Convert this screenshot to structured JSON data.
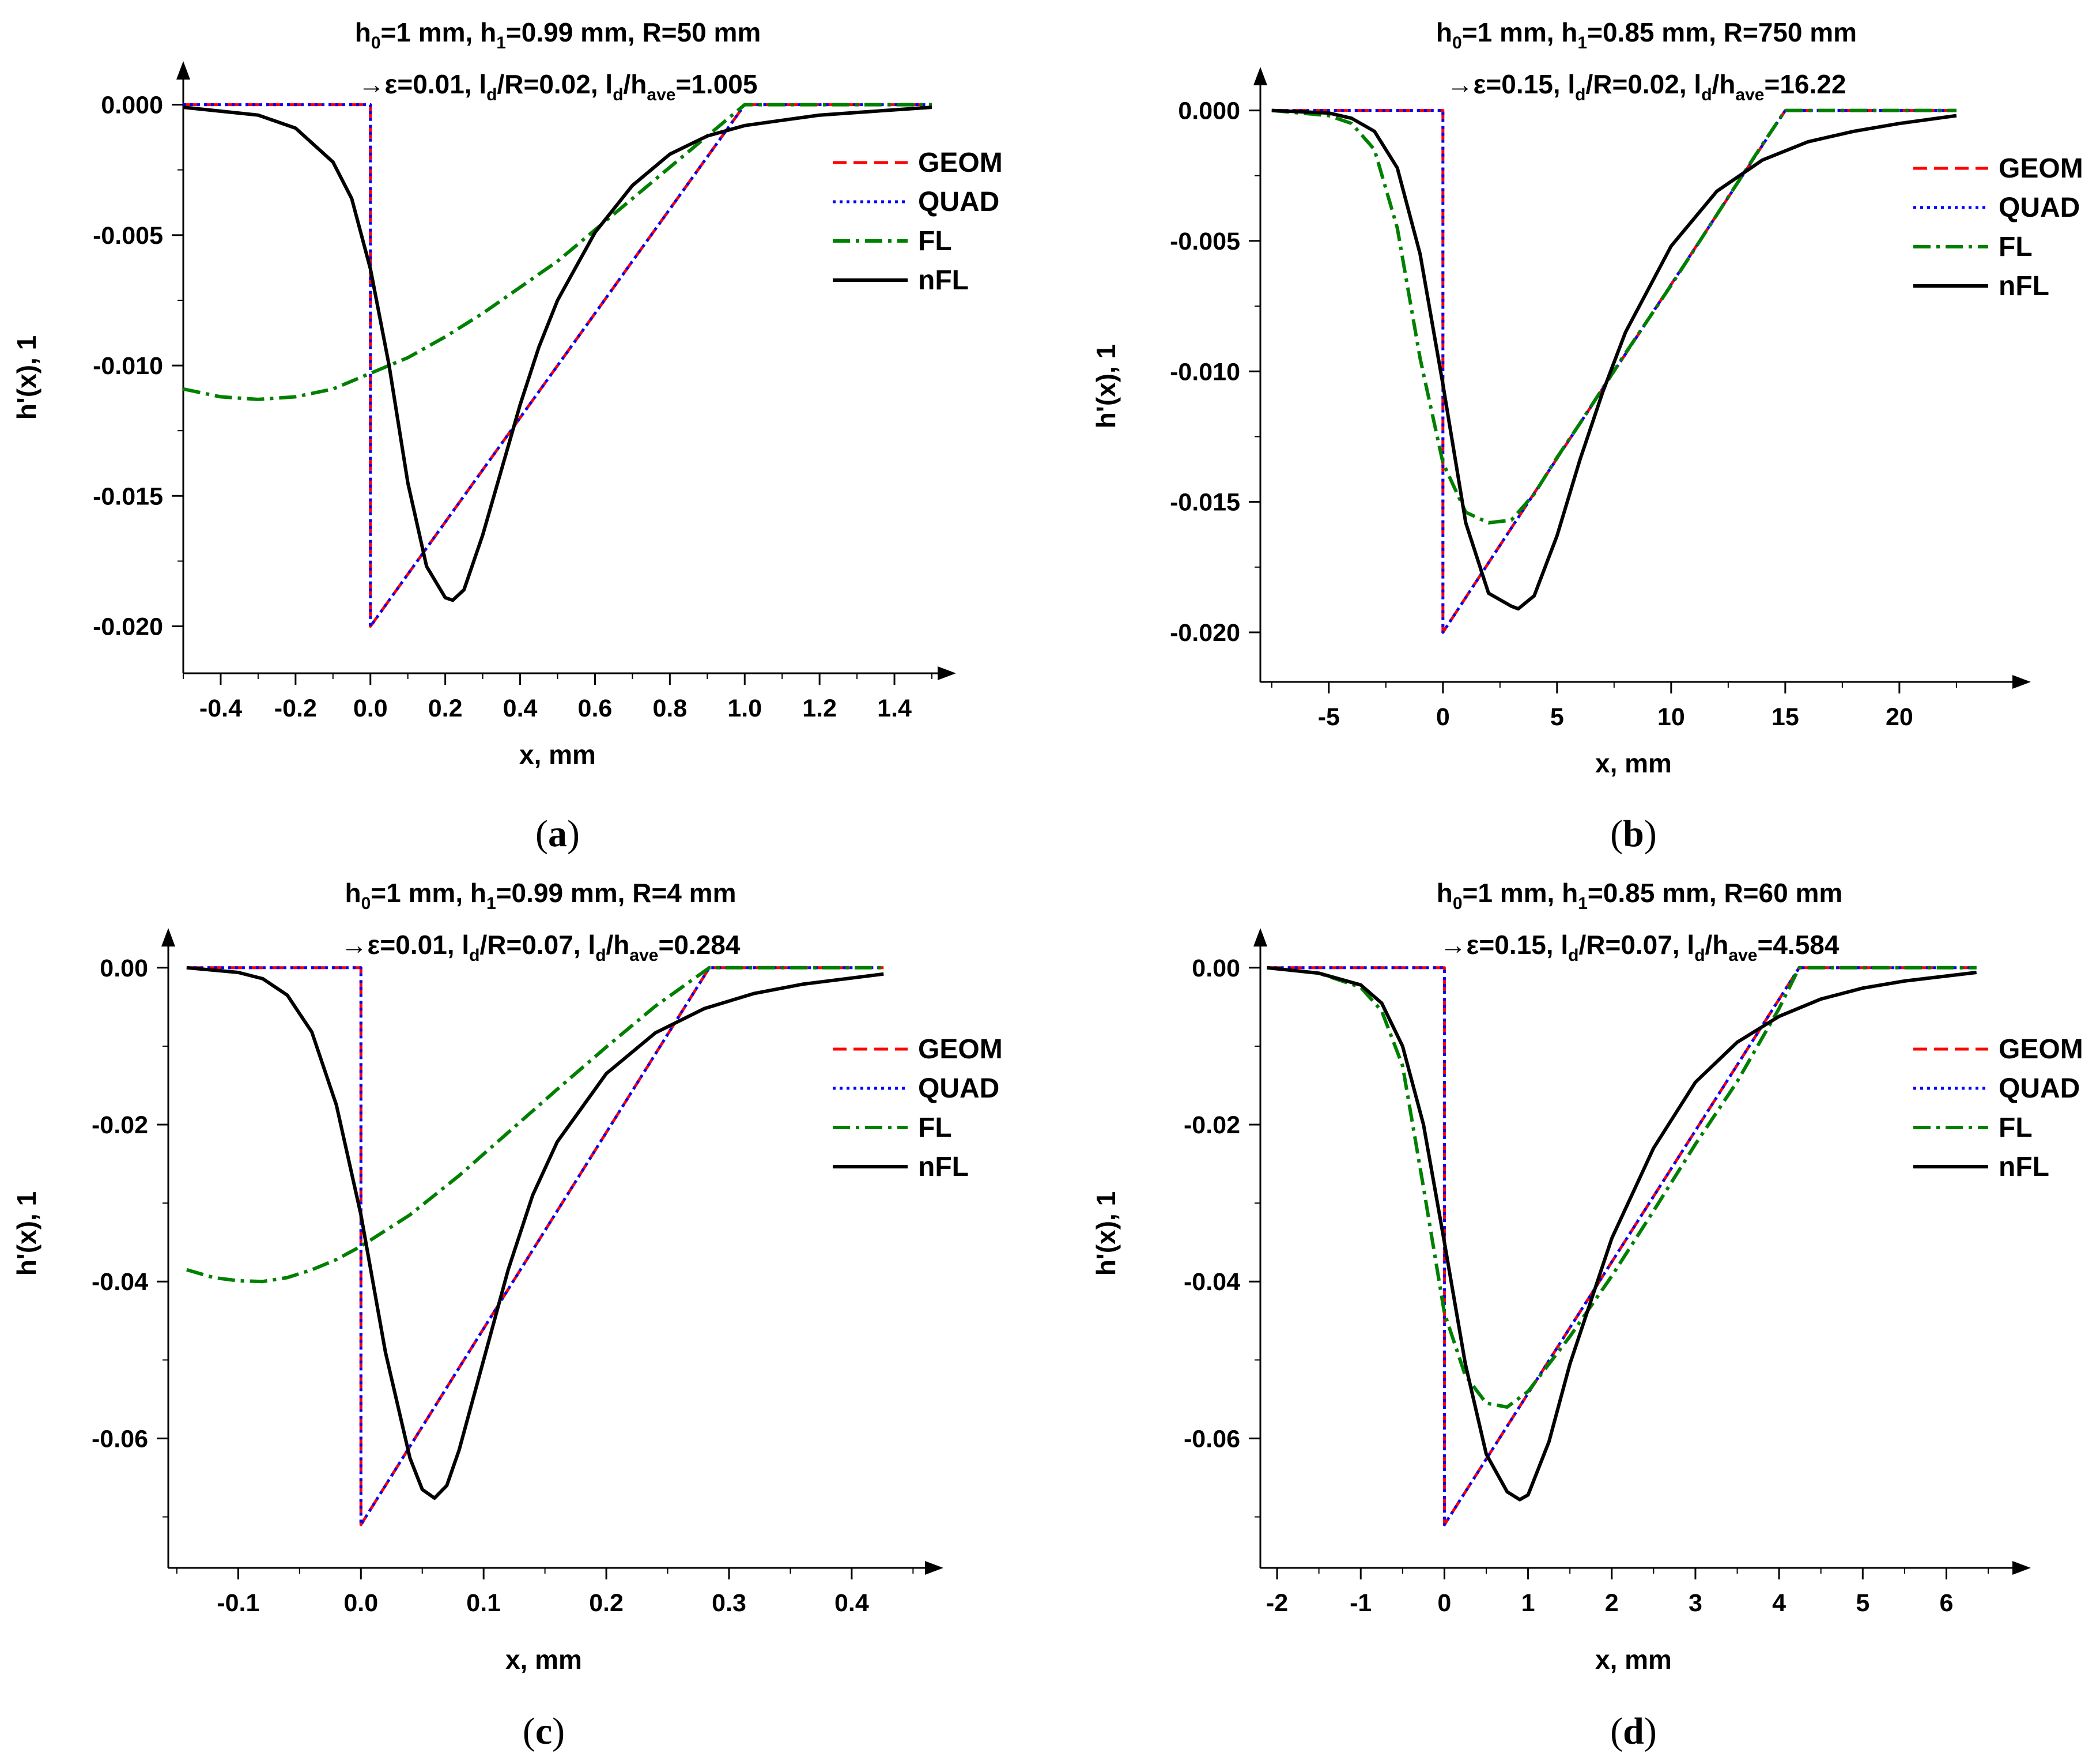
{
  "chart_data": [
    {
      "type": "line",
      "caption_letter": "a",
      "title_line1": [
        "h",
        "0",
        "=1 mm, h",
        "1",
        "=0.99 mm, R=50 mm"
      ],
      "title_line2": [
        "→ε=0.01, l",
        "d",
        "/R=0.02, l",
        "d",
        "/h",
        "ave",
        "=1.005"
      ],
      "xlabel": "x, mm",
      "ylabel": "h'(x), 1",
      "xlim": [
        -0.5,
        1.5
      ],
      "ylim": [
        -0.0218,
        0.0003
      ],
      "xticks": [
        -0.4,
        -0.2,
        0.0,
        0.2,
        0.4,
        0.6,
        0.8,
        1.0,
        1.2,
        1.4
      ],
      "xtick_labels": [
        "-0.4",
        "-0.2",
        "0.0",
        "0.2",
        "0.4",
        "0.6",
        "0.8",
        "1.0",
        "1.2",
        "1.4"
      ],
      "yticks": [
        0.0,
        -0.005,
        -0.01,
        -0.015,
        -0.02
      ],
      "ytick_labels": [
        "0.000",
        "-0.005",
        "-0.010",
        "-0.015",
        "-0.020"
      ],
      "series": [
        {
          "name": "GEOM",
          "color": "#ff0000",
          "style": "dash",
          "x": [
            -0.5,
            0.0,
            0.0,
            1.0,
            1.5
          ],
          "y": [
            0,
            0,
            -0.02,
            0,
            0
          ]
        },
        {
          "name": "QUAD",
          "color": "#0000ff",
          "style": "dot",
          "x": [
            -0.5,
            0.0,
            0.0,
            1.0,
            1.5
          ],
          "y": [
            0,
            0,
            -0.02,
            0,
            0
          ]
        },
        {
          "name": "FL",
          "color": "#008000",
          "style": "dashdot",
          "x": [
            -0.5,
            -0.4,
            -0.3,
            -0.2,
            -0.1,
            0.0,
            0.1,
            0.2,
            0.3,
            0.4,
            0.5,
            0.6,
            0.7,
            0.8,
            0.9,
            1.0,
            1.2,
            1.5
          ],
          "y": [
            -0.0109,
            -0.0112,
            -0.0113,
            -0.0112,
            -0.0109,
            -0.0103,
            -0.0097,
            -0.0089,
            -0.008,
            -0.007,
            -0.006,
            -0.0048,
            -0.0036,
            -0.0024,
            -0.0012,
            0,
            0,
            0
          ]
        },
        {
          "name": "nFL",
          "color": "#000000",
          "style": "solid",
          "x": [
            -0.5,
            -0.3,
            -0.2,
            -0.1,
            -0.05,
            0.0,
            0.05,
            0.1,
            0.15,
            0.2,
            0.22,
            0.25,
            0.3,
            0.35,
            0.4,
            0.45,
            0.5,
            0.6,
            0.7,
            0.8,
            0.9,
            1.0,
            1.1,
            1.2,
            1.3,
            1.5
          ],
          "y": [
            -0.0001,
            -0.0004,
            -0.0009,
            -0.0022,
            -0.0036,
            -0.0063,
            -0.01,
            -0.0145,
            -0.0177,
            -0.0189,
            -0.019,
            -0.0186,
            -0.0165,
            -0.014,
            -0.0115,
            -0.0093,
            -0.0075,
            -0.0049,
            -0.0031,
            -0.0019,
            -0.0012,
            -0.0008,
            -0.0006,
            -0.0004,
            -0.0003,
            -0.0001
          ]
        }
      ]
    },
    {
      "type": "line",
      "caption_letter": "b",
      "title_line1": [
        "h",
        "0",
        "=1 mm, h",
        "1",
        "=0.85 mm, R=750 mm"
      ],
      "title_line2": [
        "→ε=0.15, l",
        "d",
        "/R=0.02, l",
        "d",
        "/h",
        "ave",
        "=16.22"
      ],
      "xlabel": "x, mm",
      "ylabel": "h'(x), 1",
      "xlim": [
        -8,
        24.7
      ],
      "ylim": [
        -0.0219,
        0.0003
      ],
      "xticks": [
        -5,
        0,
        5,
        10,
        15,
        20
      ],
      "xtick_labels": [
        "-5",
        "0",
        "5",
        "10",
        "15",
        "20"
      ],
      "yticks": [
        0.0,
        -0.005,
        -0.01,
        -0.015,
        -0.02
      ],
      "ytick_labels": [
        "0.000",
        "-0.005",
        "-0.010",
        "-0.015",
        "-0.020"
      ],
      "series": [
        {
          "name": "GEOM",
          "color": "#ff0000",
          "style": "dash",
          "x": [
            -7.5,
            0,
            0,
            15,
            22.5
          ],
          "y": [
            0,
            0,
            -0.02,
            0,
            0
          ]
        },
        {
          "name": "QUAD",
          "color": "#0000ff",
          "style": "dot",
          "x": [
            -7.5,
            0,
            0,
            15,
            22.5
          ],
          "y": [
            0,
            0,
            -0.02,
            0,
            0
          ]
        },
        {
          "name": "FL",
          "color": "#008000",
          "style": "dashdot",
          "x": [
            -7.5,
            -5,
            -4,
            -3,
            -2,
            -1,
            0,
            1,
            2,
            3,
            4,
            5,
            6,
            8,
            10,
            12,
            14,
            15,
            22.5
          ],
          "y": [
            0,
            -0.0002,
            -0.0005,
            -0.0015,
            -0.0045,
            -0.0095,
            -0.0135,
            -0.0154,
            -0.0158,
            -0.0157,
            -0.0147,
            -0.0133,
            -0.012,
            -0.0093,
            -0.0067,
            -0.004,
            -0.0013,
            0,
            0
          ]
        },
        {
          "name": "nFL",
          "color": "#000000",
          "style": "solid",
          "x": [
            -7.5,
            -5,
            -4,
            -3,
            -2,
            -1,
            0,
            1,
            2,
            3,
            3.3,
            4,
            5,
            6,
            7,
            8,
            10,
            12,
            14,
            16,
            18,
            20,
            22.5
          ],
          "y": [
            0,
            -0.0001,
            -0.0003,
            -0.0008,
            -0.0022,
            -0.0055,
            -0.0105,
            -0.0158,
            -0.0185,
            -0.019,
            -0.0191,
            -0.0186,
            -0.0163,
            -0.0134,
            -0.0108,
            -0.0085,
            -0.0052,
            -0.0031,
            -0.0019,
            -0.0012,
            -0.0008,
            -0.0005,
            -0.0002
          ]
        }
      ]
    },
    {
      "type": "line",
      "caption_letter": "c",
      "title_line1": [
        "h",
        "0",
        "=1 mm, h",
        "1",
        "=0.99 mm, R=4 mm"
      ],
      "title_line2": [
        "→ε=0.01, l",
        "d",
        "/R=0.07, l",
        "d",
        "/h",
        "ave",
        "=0.284"
      ],
      "xlabel": "x, mm",
      "ylabel": "h'(x), 1",
      "xlim": [
        -0.157,
        0.455
      ],
      "ylim": [
        -0.0765,
        0.0005
      ],
      "xticks": [
        -0.1,
        0.0,
        0.1,
        0.2,
        0.3,
        0.4
      ],
      "xtick_labels": [
        "-0.1",
        "0.0",
        "0.1",
        "0.2",
        "0.3",
        "0.4"
      ],
      "yticks": [
        0.0,
        -0.02,
        -0.04,
        -0.06
      ],
      "ytick_labels": [
        "0.00",
        "-0.02",
        "-0.04",
        "-0.06"
      ],
      "series": [
        {
          "name": "GEOM",
          "color": "#ff0000",
          "style": "dash",
          "x": [
            -0.142,
            0.0,
            0.0,
            0.284,
            0.426
          ],
          "y": [
            0,
            0,
            -0.071,
            0,
            0
          ]
        },
        {
          "name": "QUAD",
          "color": "#0000ff",
          "style": "dot",
          "x": [
            -0.142,
            0.0,
            0.0,
            0.284,
            0.426
          ],
          "y": [
            0,
            0,
            -0.071,
            0,
            0
          ]
        },
        {
          "name": "FL",
          "color": "#008000",
          "style": "dashdot",
          "x": [
            -0.142,
            -0.12,
            -0.1,
            -0.08,
            -0.06,
            -0.04,
            -0.02,
            0.0,
            0.04,
            0.08,
            0.12,
            0.16,
            0.2,
            0.24,
            0.284,
            0.426
          ],
          "y": [
            -0.0385,
            -0.0395,
            -0.0399,
            -0.04,
            -0.0395,
            -0.0385,
            -0.0372,
            -0.0355,
            -0.0315,
            -0.0265,
            -0.021,
            -0.0155,
            -0.0101,
            -0.0049,
            0,
            0
          ]
        },
        {
          "name": "nFL",
          "color": "#000000",
          "style": "solid",
          "x": [
            -0.142,
            -0.1,
            -0.08,
            -0.06,
            -0.04,
            -0.02,
            0.0,
            0.02,
            0.04,
            0.05,
            0.06,
            0.07,
            0.08,
            0.1,
            0.12,
            0.14,
            0.16,
            0.2,
            0.24,
            0.28,
            0.32,
            0.36,
            0.426
          ],
          "y": [
            0,
            -0.0006,
            -0.0014,
            -0.0035,
            -0.0082,
            -0.0175,
            -0.0315,
            -0.049,
            -0.0625,
            -0.0665,
            -0.0676,
            -0.066,
            -0.0615,
            -0.05,
            -0.0385,
            -0.029,
            -0.0222,
            -0.0135,
            -0.0083,
            -0.0052,
            -0.0033,
            -0.0021,
            -0.0008
          ]
        }
      ]
    },
    {
      "type": "line",
      "caption_letter": "d",
      "title_line1": [
        "h",
        "0",
        "=1 mm, h",
        "1",
        "=0.85 mm, R=60 mm"
      ],
      "title_line2": [
        "→ε=0.15, l",
        "d",
        "/R=0.07, l",
        "d",
        "/h",
        "ave",
        "=4.584"
      ],
      "xlabel": "x, mm",
      "ylabel": "h'(x), 1",
      "xlim": [
        -2.2,
        6.72
      ],
      "ylim": [
        -0.0765,
        0.0005
      ],
      "xticks": [
        -2,
        -1,
        0,
        1,
        2,
        3,
        4,
        5,
        6
      ],
      "xtick_labels": [
        "-2",
        "-1",
        "0",
        "1",
        "2",
        "3",
        "4",
        "5",
        "6"
      ],
      "yticks": [
        0.0,
        -0.02,
        -0.04,
        -0.06
      ],
      "ytick_labels": [
        "0.00",
        "-0.02",
        "-0.04",
        "-0.06"
      ],
      "series": [
        {
          "name": "GEOM",
          "color": "#ff0000",
          "style": "dash",
          "x": [
            -2.12,
            0,
            0,
            4.24,
            6.36
          ],
          "y": [
            0,
            0,
            -0.071,
            0,
            0
          ]
        },
        {
          "name": "QUAD",
          "color": "#0000ff",
          "style": "dot",
          "x": [
            -2.12,
            0,
            0,
            4.24,
            6.36
          ],
          "y": [
            0,
            0,
            -0.071,
            0,
            0
          ]
        },
        {
          "name": "FL",
          "color": "#008000",
          "style": "dashdot",
          "x": [
            -2.12,
            -1.5,
            -1,
            -0.75,
            -0.5,
            -0.25,
            0,
            0.25,
            0.5,
            0.75,
            1,
            1.5,
            2,
            2.5,
            3,
            3.5,
            4,
            4.24,
            6.36
          ],
          "y": [
            0,
            -0.0007,
            -0.0025,
            -0.0055,
            -0.0125,
            -0.028,
            -0.044,
            -0.052,
            -0.0555,
            -0.056,
            -0.054,
            -0.047,
            -0.0393,
            -0.031,
            -0.0225,
            -0.0145,
            -0.0052,
            0,
            0
          ]
        },
        {
          "name": "nFL",
          "color": "#000000",
          "style": "solid",
          "x": [
            -2.12,
            -1.5,
            -1,
            -0.75,
            -0.5,
            -0.25,
            0,
            0.25,
            0.5,
            0.75,
            0.9,
            1.0,
            1.25,
            1.5,
            2,
            2.5,
            3,
            3.5,
            4,
            4.5,
            5,
            5.5,
            6.36
          ],
          "y": [
            0,
            -0.0007,
            -0.0022,
            -0.0045,
            -0.01,
            -0.02,
            -0.035,
            -0.0505,
            -0.062,
            -0.0668,
            -0.0678,
            -0.0672,
            -0.0604,
            -0.0505,
            -0.0345,
            -0.023,
            -0.0146,
            -0.0095,
            -0.0062,
            -0.004,
            -0.0026,
            -0.0017,
            -0.0006
          ]
        }
      ]
    }
  ]
}
